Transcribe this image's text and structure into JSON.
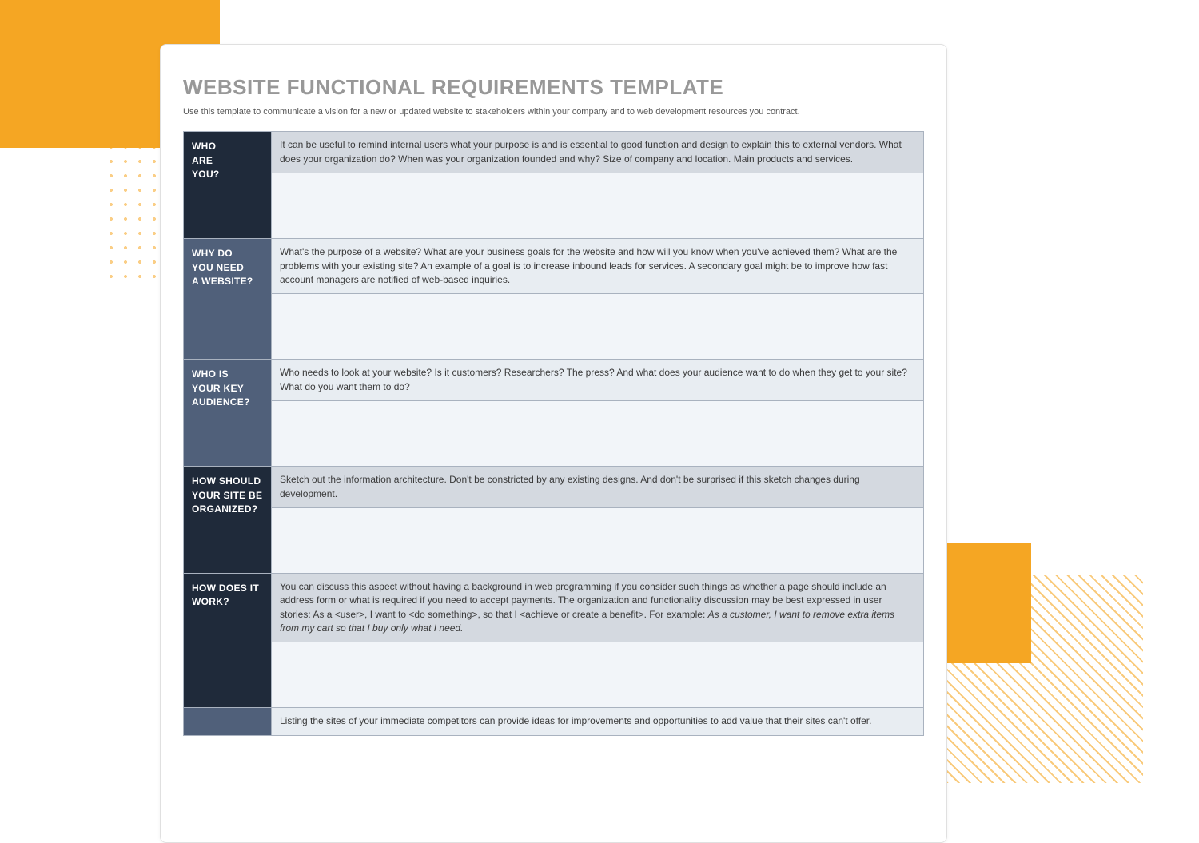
{
  "colors": {
    "accent_orange": "#f5a623",
    "title_grey": "#989898",
    "label_dark": "#1f2a3a",
    "label_grey": "#50607a",
    "prompt_light": "#e8edf2",
    "prompt_grey": "#d4d9e0",
    "answer_bg": "#f2f5f9",
    "border": "#a9b2bf",
    "page_bg": "#ffffff"
  },
  "document": {
    "title": "WEBSITE FUNCTIONAL REQUIREMENTS TEMPLATE",
    "subtitle": "Use this template to communicate a vision for a new or updated website to stakeholders within your company and to web development resources you contract."
  },
  "sections": [
    {
      "label": "WHO\nARE\nYOU?",
      "shade": "dark",
      "prompt": "It can be useful to remind internal users what your purpose is and is essential to good function and design to explain this to external vendors. What does your organization do? When was your organization founded and why? Size of company and location. Main products and services.",
      "answer": ""
    },
    {
      "label": "WHY DO\nYOU NEED\nA WEBSITE?",
      "shade": "grey",
      "prompt": "What's the purpose of a website? What are your business goals for the website and how will you know when you've achieved them? What are the problems with your existing site? An example of a goal is to increase inbound leads for services. A secondary goal might be to improve how fast account managers are notified of web-based inquiries.",
      "answer": ""
    },
    {
      "label": "WHO IS\nYOUR KEY\nAUDIENCE?",
      "shade": "grey",
      "prompt": "Who needs to look at your website? Is it customers? Researchers? The press? And what does your audience want to do when they get to your site? What do you want them to do?",
      "answer": ""
    },
    {
      "label": "HOW SHOULD\nYOUR SITE BE\nORGANIZED?",
      "shade": "dark",
      "prompt": "Sketch out the information architecture. Don't be constricted by any existing designs. And don't be surprised if this sketch changes during development.",
      "answer": ""
    },
    {
      "label": "HOW DOES IT\nWORK?",
      "shade": "dark",
      "prompt": "You can discuss this aspect without having a background in web programming if you consider such things as whether a page should include an address form or what is required if you need to accept payments. The organization and functionality discussion may be best expressed in user stories: As a <user>, I want to <do something>, so that I <achieve or create a benefit>. For example:  ",
      "prompt_italic": "As a customer, I want to remove extra items from my cart so that I buy only what I need.",
      "answer": ""
    },
    {
      "label": "",
      "shade": "grey",
      "prompt": "Listing the sites of your immediate competitors can provide ideas for improvements and opportunities to add value that their sites can't offer.",
      "answer": null
    }
  ]
}
